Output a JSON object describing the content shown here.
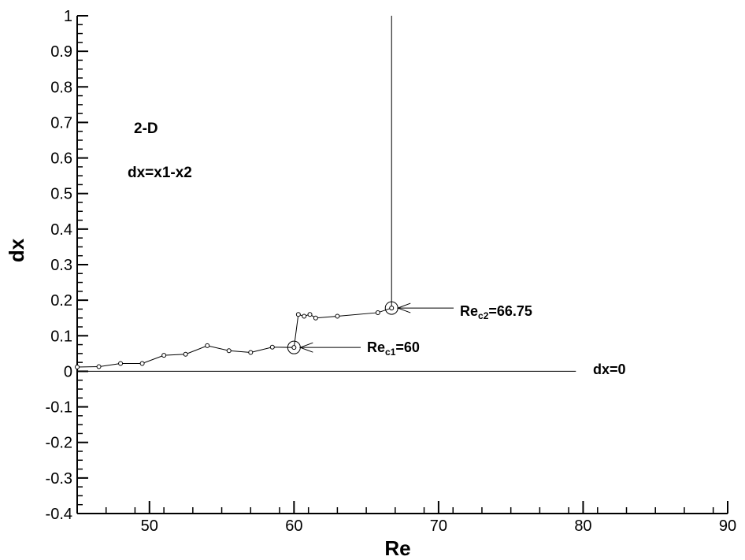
{
  "chart_data": {
    "type": "line",
    "title": "",
    "xlabel": "Re",
    "ylabel": "dx",
    "xlim": [
      45,
      90
    ],
    "ylim": [
      -0.4,
      1.0
    ],
    "x_ticks": [
      50,
      60,
      70,
      80,
      90
    ],
    "y_ticks": [
      -0.4,
      -0.3,
      -0.2,
      -0.1,
      0,
      0.1,
      0.2,
      0.3,
      0.4,
      0.5,
      0.6,
      0.7,
      0.8,
      0.9,
      1
    ],
    "grid": false,
    "series": [
      {
        "x": [
          45,
          46.5,
          48,
          49.5,
          51,
          52.5,
          54,
          55.5,
          57,
          58.5,
          60,
          60.3,
          60.7,
          61.1,
          61.5,
          63,
          65.8,
          66.75,
          66.75
        ],
        "y": [
          0.012,
          0.013,
          0.022,
          0.022,
          0.045,
          0.048,
          0.072,
          0.058,
          0.053,
          0.068,
          0.067,
          0.16,
          0.155,
          0.16,
          0.15,
          0.155,
          0.165,
          0.178,
          1.0
        ]
      }
    ],
    "reference_line": {
      "y": 0,
      "x_range": [
        45,
        79.5
      ],
      "label": "dx=0"
    },
    "annotations": {
      "dimension_label": "2-D",
      "definition_label": "dx=x1-x2",
      "re_c1": {
        "prefix": "Re",
        "subscript": "c1",
        "suffix": "=60",
        "x": 60,
        "y": 0.067
      },
      "re_c2": {
        "prefix": "Re",
        "subscript": "c2",
        "suffix": "=66.75",
        "x": 66.75,
        "y": 0.178
      }
    }
  }
}
